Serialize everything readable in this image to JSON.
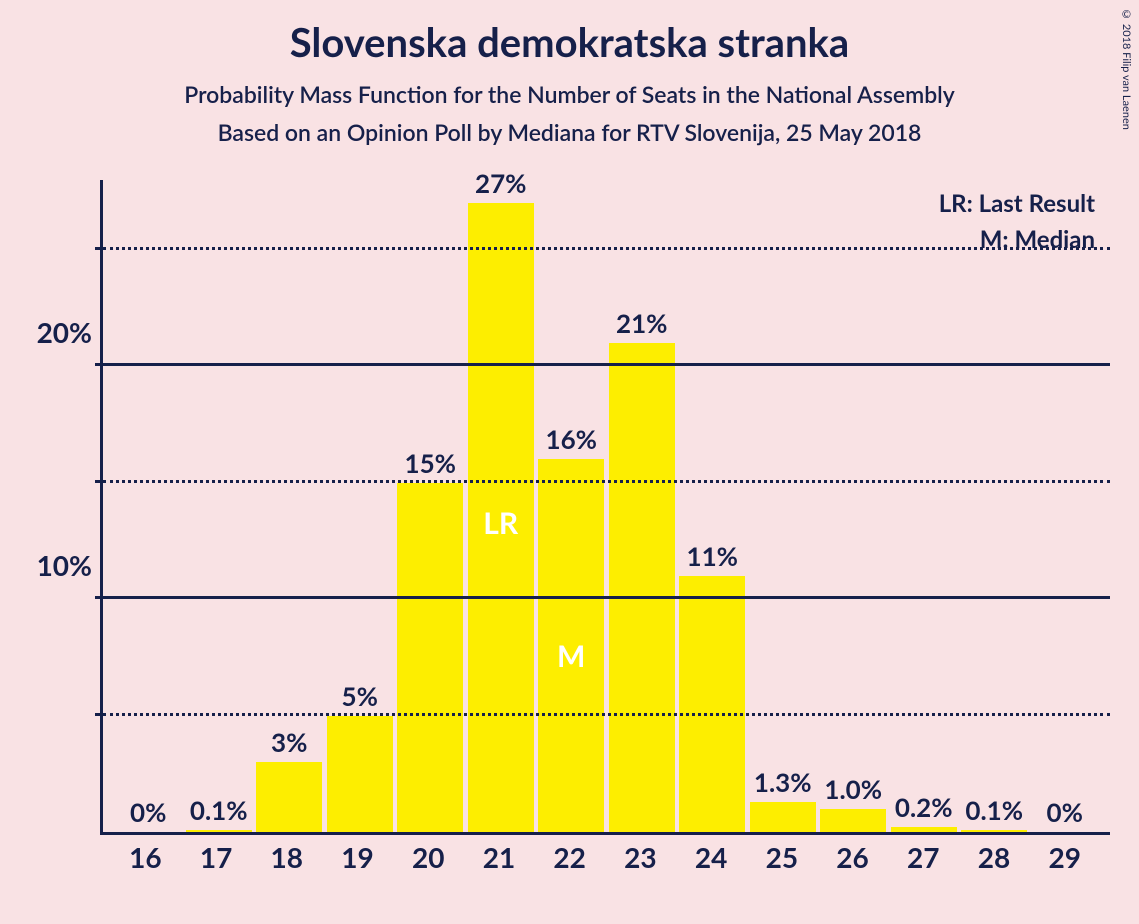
{
  "chart": {
    "type": "bar",
    "title": "Slovenska demokratska stranka",
    "subtitle1": "Probability Mass Function for the Number of Seats in the National Assembly",
    "subtitle2": "Based on an Opinion Poll by Mediana for RTV Slovenija, 25 May 2018",
    "copyright": "© 2018 Filip van Laenen",
    "background_color": "#f9e2e4",
    "text_color": "#16204a",
    "bar_color": "#fdee00",
    "inner_label_color": "#ffffff",
    "title_fontsize": 40,
    "subtitle_fontsize": 23,
    "axis_fontsize": 28,
    "bar_label_fontsize": 26,
    "legend_fontsize": 24,
    "y_max_percent": 28,
    "y_gridlines": [
      {
        "value": 5,
        "style": "dotted",
        "label": ""
      },
      {
        "value": 10,
        "style": "solid",
        "label": "10%"
      },
      {
        "value": 15,
        "style": "dotted",
        "label": ""
      },
      {
        "value": 20,
        "style": "solid",
        "label": "20%"
      },
      {
        "value": 25,
        "style": "dotted",
        "label": ""
      }
    ],
    "legend": {
      "lr": "LR: Last Result",
      "m": "M: Median"
    },
    "categories": [
      16,
      17,
      18,
      19,
      20,
      21,
      22,
      23,
      24,
      25,
      26,
      27,
      28,
      29
    ],
    "values": [
      0,
      0.1,
      3,
      5,
      15,
      27,
      16,
      21,
      11,
      1.3,
      1.0,
      0.2,
      0.1,
      0
    ],
    "value_labels": [
      "0%",
      "0.1%",
      "3%",
      "5%",
      "15%",
      "27%",
      "16%",
      "21%",
      "11%",
      "1.3%",
      "1.0%",
      "0.2%",
      "0.1%",
      "0%"
    ],
    "inner_labels": {
      "LR": 21,
      "M": 22
    },
    "inner_label_top_pct": {
      "LR": 48,
      "M": 48
    }
  }
}
